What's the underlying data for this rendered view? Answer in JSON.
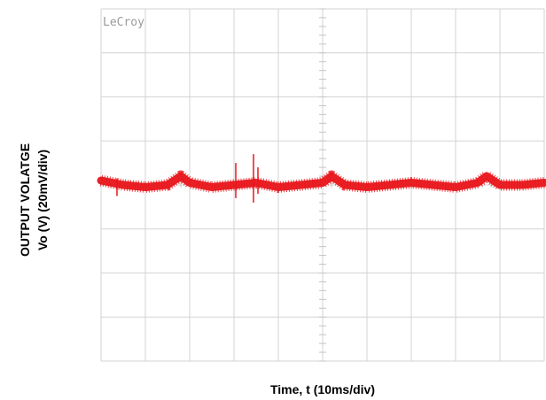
{
  "chart_data": {
    "type": "line",
    "brand": "LeCroy",
    "ylabel_line1": "OUTPUT VOLATGE",
    "ylabel_line2": "Vo (V) (20mV/div)",
    "xlabel": "Time, t (10ms/div)",
    "grid": true,
    "x_divisions": 10,
    "y_divisions": 8,
    "xlim": [
      0,
      100
    ],
    "ylim": [
      -80,
      80
    ],
    "trace_color": "#e8161b",
    "grid_color": "#d3d3d3",
    "series": [
      {
        "x": [
          0,
          5,
          10,
          15,
          18,
          20,
          25,
          30,
          35,
          40,
          45,
          50,
          52,
          55,
          60,
          65,
          70,
          75,
          80,
          85,
          87,
          90,
          95,
          100
        ],
        "values": [
          2,
          0,
          -1,
          0,
          4,
          1,
          -1,
          0,
          1,
          -1,
          0,
          1,
          4,
          0,
          -1,
          0,
          1,
          0,
          -1,
          1,
          4,
          0,
          0,
          1
        ]
      }
    ],
    "spikes": [
      {
        "x": 30.4,
        "values": [
          10,
          -6
        ]
      },
      {
        "x": 34.4,
        "values": [
          14,
          -8
        ]
      },
      {
        "x": 35.4,
        "values": [
          8,
          -4
        ]
      },
      {
        "x": 3.6,
        "values": [
          3,
          -5
        ]
      }
    ]
  }
}
